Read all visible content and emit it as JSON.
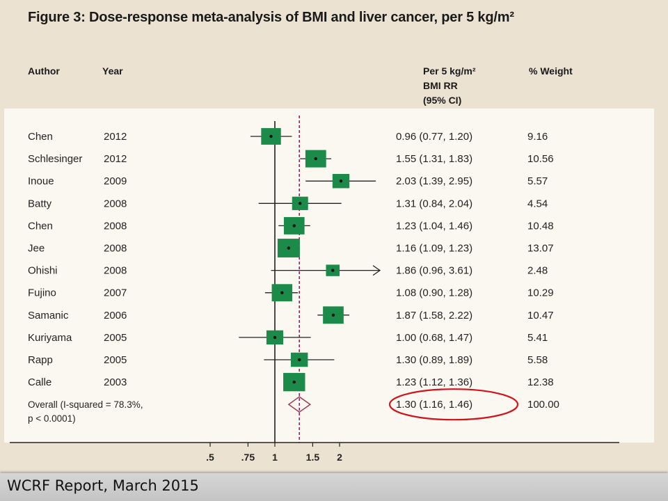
{
  "title": "Figure 3: Dose-response meta-analysis of BMI and liver cancer, per 5 kg/m²",
  "headers": {
    "author": "Author",
    "year": "Year",
    "rr_line1": "Per 5 kg/m²",
    "rr_line2": "BMI RR",
    "rr_line3": "(95% CI)",
    "weight": "% Weight"
  },
  "footer": "WCRF Report, March 2015",
  "colors": {
    "box": "#1c8a48",
    "diamond": "#9c3a52",
    "ref_line": "#8c1a4a",
    "highlight_ellipse": "#d0141c"
  },
  "chart_data": {
    "type": "forest",
    "scale": "log",
    "null_value": 1,
    "overall_reference": 1.3,
    "x_ticks": [
      {
        "value": 0.5,
        "label": ".5"
      },
      {
        "value": 0.75,
        "label": ".75"
      },
      {
        "value": 1,
        "label": "1"
      },
      {
        "value": 1.5,
        "label": "1.5"
      },
      {
        "value": 2,
        "label": "2"
      }
    ],
    "studies": [
      {
        "author": "Chen",
        "year": "2012",
        "rr": 0.96,
        "lo": 0.77,
        "hi": 1.2,
        "ci_text": "0.96 (0.77, 1.20)",
        "weight": 9.16,
        "weight_text": "9.16"
      },
      {
        "author": "Schlesinger",
        "year": "2012",
        "rr": 1.55,
        "lo": 1.31,
        "hi": 1.83,
        "ci_text": "1.55 (1.31, 1.83)",
        "weight": 10.56,
        "weight_text": "10.56"
      },
      {
        "author": "Inoue",
        "year": "2009",
        "rr": 2.03,
        "lo": 1.39,
        "hi": 2.95,
        "ci_text": "2.03 (1.39, 2.95)",
        "weight": 5.57,
        "weight_text": "5.57"
      },
      {
        "author": "Batty",
        "year": "2008",
        "rr": 1.31,
        "lo": 0.84,
        "hi": 2.04,
        "ci_text": "1.31 (0.84, 2.04)",
        "weight": 4.54,
        "weight_text": "4.54"
      },
      {
        "author": "Chen",
        "year": "2008",
        "rr": 1.23,
        "lo": 1.04,
        "hi": 1.46,
        "ci_text": "1.23 (1.04, 1.46)",
        "weight": 10.48,
        "weight_text": "10.48"
      },
      {
        "author": "Jee",
        "year": "2008",
        "rr": 1.16,
        "lo": 1.09,
        "hi": 1.23,
        "ci_text": "1.16 (1.09, 1.23)",
        "weight": 13.07,
        "weight_text": "13.07"
      },
      {
        "author": "Ohishi",
        "year": "2008",
        "rr": 1.86,
        "lo": 0.96,
        "hi": 3.61,
        "ci_text": "1.86 (0.96, 3.61)",
        "weight": 2.48,
        "weight_text": "2.48",
        "arrow_right": true
      },
      {
        "author": "Fujino",
        "year": "2007",
        "rr": 1.08,
        "lo": 0.9,
        "hi": 1.28,
        "ci_text": "1.08 (0.90, 1.28)",
        "weight": 10.29,
        "weight_text": "10.29"
      },
      {
        "author": "Samanic",
        "year": "2006",
        "rr": 1.87,
        "lo": 1.58,
        "hi": 2.22,
        "ci_text": "1.87 (1.58, 2.22)",
        "weight": 10.47,
        "weight_text": "10.47"
      },
      {
        "author": "Kuriyama",
        "year": "2005",
        "rr": 1.0,
        "lo": 0.68,
        "hi": 1.47,
        "ci_text": "1.00 (0.68, 1.47)",
        "weight": 5.41,
        "weight_text": "5.41"
      },
      {
        "author": "Rapp",
        "year": "2005",
        "rr": 1.3,
        "lo": 0.89,
        "hi": 1.89,
        "ci_text": "1.30 (0.89, 1.89)",
        "weight": 5.58,
        "weight_text": "5.58"
      },
      {
        "author": "Calle",
        "year": "2003",
        "rr": 1.23,
        "lo": 1.12,
        "hi": 1.36,
        "ci_text": "1.23 (1.12, 1.36)",
        "weight": 12.38,
        "weight_text": "12.38"
      }
    ],
    "overall": {
      "label_line1": "Overall (I-squared = 78.3%,",
      "label_line2": "p < 0.0001)",
      "rr": 1.3,
      "lo": 1.16,
      "hi": 1.46,
      "ci_text": "1.30 (1.16, 1.46)",
      "weight_text": "100.00",
      "highlighted": true
    }
  }
}
